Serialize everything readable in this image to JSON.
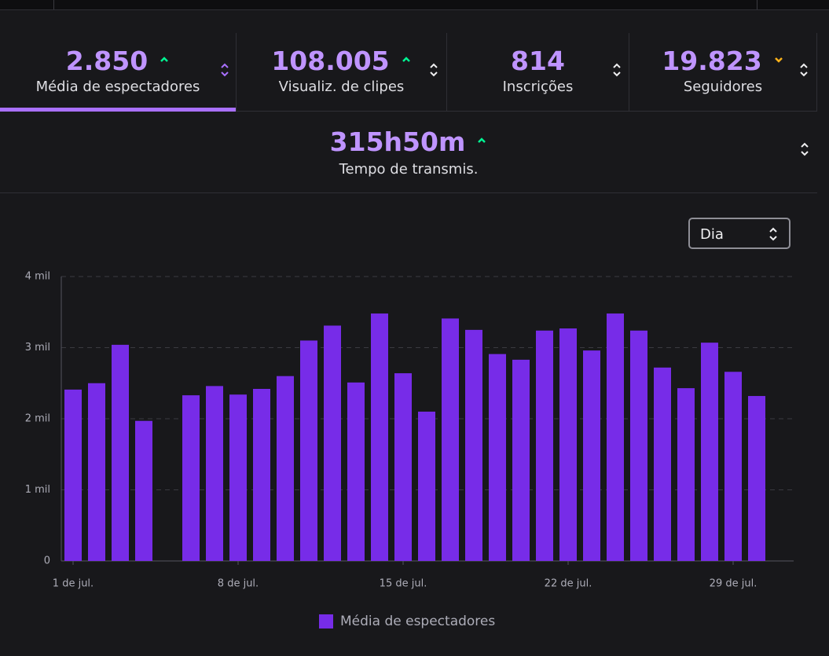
{
  "stats": [
    {
      "value": "2.850",
      "label": "Média de espectadores"
    },
    {
      "value": "108.005",
      "label": "Visualiz. de clipes"
    },
    {
      "value": "814",
      "label": "Inscrições"
    },
    {
      "value": "19.823",
      "label": "Seguidores"
    },
    {
      "value": "315h50m",
      "label": "Tempo de transmis."
    }
  ],
  "period_select": "Dia",
  "chart_data": {
    "type": "bar",
    "categories": [
      "1 de jul.",
      null,
      null,
      null,
      null,
      null,
      null,
      "8 de jul.",
      null,
      null,
      null,
      null,
      null,
      null,
      "15 de jul.",
      null,
      null,
      null,
      null,
      null,
      null,
      "22 de jul.",
      null,
      null,
      null,
      null,
      null,
      null,
      "29 de jul.",
      null
    ],
    "series": [
      {
        "name": "Média de espectadores",
        "color": "#772ce8",
        "values": [
          2410,
          2500,
          3040,
          1970,
          null,
          2330,
          2460,
          2340,
          2420,
          2600,
          3100,
          3310,
          2510,
          3480,
          2640,
          2100,
          3410,
          3250,
          2910,
          2830,
          3240,
          3270,
          2960,
          3480,
          3240,
          2720,
          2430,
          3070,
          2660,
          2320
        ]
      }
    ],
    "ylim": [
      0,
      4000
    ],
    "yticks": [
      0,
      {
        "value": 1000,
        "label": "1 mil"
      },
      {
        "value": 2000,
        "label": "2 mil"
      },
      {
        "value": 3000,
        "label": "3 mil"
      },
      {
        "value": 4000,
        "label": "4 mil"
      }
    ],
    "grid": true,
    "legend": "bottom"
  }
}
